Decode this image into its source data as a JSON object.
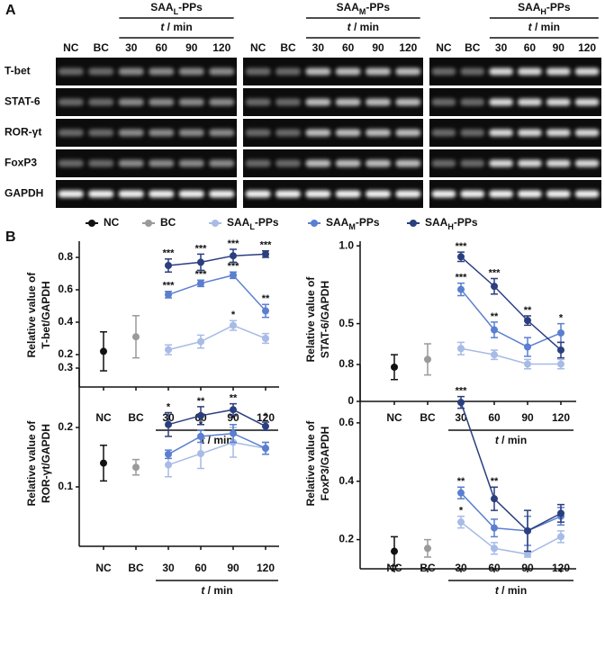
{
  "panel_a": {
    "label": "A",
    "rows": [
      "T-bet",
      "STAT-6",
      "ROR-γt",
      "FoxP3",
      "GAPDH"
    ],
    "groups": [
      {
        "title": [
          "SAA",
          "L",
          "-PPs"
        ],
        "time_label": [
          "t",
          " / min"
        ],
        "lanes": [
          "NC",
          "BC",
          "30",
          "60",
          "90",
          "120"
        ]
      },
      {
        "title": [
          "SAA",
          "M",
          "-PPs"
        ],
        "time_label": [
          "t",
          " / min"
        ],
        "lanes": [
          "NC",
          "BC",
          "30",
          "60",
          "90",
          "120"
        ]
      },
      {
        "title": [
          "SAA",
          "H",
          "-PPs"
        ],
        "time_label": [
          "t",
          " / min"
        ],
        "lanes": [
          "NC",
          "BC",
          "30",
          "60",
          "90",
          "120"
        ]
      }
    ]
  },
  "panel_b": {
    "label": "B"
  },
  "chart_data": [
    {
      "type": "line",
      "ylabel": [
        "Relative value of",
        "T-bet/GAPDH"
      ],
      "x_group_label": [
        "t",
        " / min"
      ],
      "categories": [
        "NC",
        "BC",
        "30",
        "60",
        "90",
        "120"
      ],
      "ylim": [
        0,
        0.9
      ],
      "yticks": [
        0.2,
        0.4,
        0.6,
        0.8
      ],
      "series": [
        {
          "name": "NC",
          "color": "#111111",
          "values": [
            0.22,
            null,
            null,
            null,
            null,
            null
          ],
          "errors": [
            0.12,
            null,
            null,
            null,
            null,
            null
          ]
        },
        {
          "name": "BC",
          "color": "#9a9a9a",
          "values": [
            null,
            0.31,
            null,
            null,
            null,
            null
          ],
          "errors": [
            null,
            0.13,
            null,
            null,
            null,
            null
          ]
        },
        {
          "name": [
            "SAA",
            "L",
            "-PPs"
          ],
          "color": "#a7bbe6",
          "values": [
            null,
            null,
            0.23,
            0.28,
            0.38,
            0.3
          ],
          "errors": [
            null,
            null,
            0.03,
            0.04,
            0.03,
            0.03
          ],
          "labels": [
            null,
            null,
            null,
            null,
            "*",
            null
          ]
        },
        {
          "name": [
            "SAA",
            "M",
            "-PPs"
          ],
          "color": "#5a7fd0",
          "values": [
            null,
            null,
            0.57,
            0.64,
            0.69,
            0.47
          ],
          "errors": [
            null,
            null,
            0.02,
            0.02,
            0.02,
            0.04
          ],
          "labels": [
            null,
            null,
            "***",
            "***",
            "***",
            "**"
          ]
        },
        {
          "name": [
            "SAA",
            "H",
            "-PPs"
          ],
          "color": "#2b3f7f",
          "values": [
            null,
            null,
            0.75,
            0.77,
            0.81,
            0.82
          ],
          "errors": [
            null,
            null,
            0.04,
            0.05,
            0.04,
            0.02
          ],
          "labels": [
            null,
            null,
            "***",
            "***",
            "***",
            "***"
          ]
        }
      ]
    },
    {
      "type": "line",
      "ylabel": [
        "Relative value of",
        "STAT-6/GAPDH"
      ],
      "x_group_label": [
        "t",
        " / min"
      ],
      "categories": [
        "NC",
        "BC",
        "30",
        "60",
        "90",
        "120"
      ],
      "ylim": [
        0,
        1.03
      ],
      "yticks": [
        0,
        0.5,
        {
          "value": 1,
          "label": "1.0"
        }
      ],
      "series": [
        {
          "color": "#111111",
          "values": [
            0.22,
            null,
            null,
            null,
            null,
            null
          ],
          "errors": [
            0.08,
            null,
            null,
            null,
            null,
            null
          ]
        },
        {
          "color": "#9a9a9a",
          "values": [
            null,
            0.27,
            null,
            null,
            null,
            null
          ],
          "errors": [
            null,
            0.1,
            null,
            null,
            null,
            null
          ]
        },
        {
          "color": "#a7bbe6",
          "values": [
            null,
            null,
            0.34,
            0.3,
            0.24,
            0.24
          ],
          "errors": [
            null,
            null,
            0.04,
            0.03,
            0.03,
            0.03
          ]
        },
        {
          "color": "#5a7fd0",
          "values": [
            null,
            null,
            0.72,
            0.46,
            0.35,
            0.44
          ],
          "errors": [
            null,
            null,
            0.04,
            0.05,
            0.06,
            0.06
          ],
          "labels": [
            null,
            null,
            "***",
            "**",
            null,
            "*"
          ]
        },
        {
          "color": "#2b3f7f",
          "values": [
            null,
            null,
            0.93,
            0.74,
            0.52,
            0.33
          ],
          "errors": [
            null,
            null,
            0.03,
            0.05,
            0.03,
            0.05
          ],
          "labels": [
            null,
            null,
            "***",
            "***",
            "**",
            null
          ]
        }
      ]
    },
    {
      "type": "line",
      "ylabel": [
        "Relative value of",
        "ROR-γt/GAPDH"
      ],
      "x_group_label": [
        "t",
        " / min"
      ],
      "categories": [
        "NC",
        "BC",
        "30",
        "60",
        "90",
        "120"
      ],
      "ylim": [
        0,
        0.3
      ],
      "yticks": [
        0.1,
        0.2,
        0.3
      ],
      "series": [
        {
          "color": "#111111",
          "values": [
            0.14,
            null,
            null,
            null,
            null,
            null
          ],
          "errors": [
            0.03,
            null,
            null,
            null,
            null,
            null
          ]
        },
        {
          "color": "#9a9a9a",
          "values": [
            null,
            0.133,
            null,
            null,
            null,
            null
          ],
          "errors": [
            null,
            0.013,
            null,
            null,
            null,
            null
          ]
        },
        {
          "color": "#a7bbe6",
          "values": [
            null,
            null,
            0.137,
            0.156,
            0.175,
            0.165
          ],
          "errors": [
            null,
            null,
            0.02,
            0.025,
            0.025,
            0.01
          ]
        },
        {
          "color": "#5a7fd0",
          "values": [
            null,
            null,
            0.155,
            0.185,
            0.19,
            0.165
          ],
          "errors": [
            null,
            null,
            0.007,
            0.01,
            0.015,
            0.01
          ],
          "labels": [
            null,
            null,
            null,
            "*",
            "*",
            null
          ]
        },
        {
          "color": "#2b3f7f",
          "values": [
            null,
            null,
            0.205,
            0.22,
            0.23,
            0.202
          ],
          "errors": [
            null,
            null,
            0.02,
            0.015,
            0.01,
            0.007
          ],
          "labels": [
            null,
            null,
            "*",
            "**",
            "**",
            "*"
          ]
        }
      ]
    },
    {
      "type": "line",
      "ylabel": [
        "Relative value of",
        "FoxP3/GAPDH"
      ],
      "x_group_label": [
        "t",
        " / min"
      ],
      "categories": [
        "NC",
        "BC",
        "30",
        "60",
        "90",
        "120"
      ],
      "ylim": [
        0.1,
        0.8
      ],
      "yticks": [
        0.2,
        0.4,
        0.6,
        0.8
      ],
      "series": [
        {
          "color": "#111111",
          "values": [
            0.16,
            null,
            null,
            null,
            null,
            null
          ],
          "errors": [
            0.05,
            null,
            null,
            null,
            null,
            null
          ]
        },
        {
          "color": "#9a9a9a",
          "values": [
            null,
            0.17,
            null,
            null,
            null,
            null
          ],
          "errors": [
            null,
            0.03,
            null,
            null,
            null,
            null
          ]
        },
        {
          "color": "#a7bbe6",
          "values": [
            null,
            null,
            0.26,
            0.17,
            0.15,
            0.21
          ],
          "errors": [
            null,
            null,
            0.02,
            0.02,
            0.01,
            0.02
          ],
          "labels": [
            null,
            null,
            "*",
            null,
            null,
            null
          ]
        },
        {
          "color": "#5a7fd0",
          "values": [
            null,
            null,
            0.36,
            0.24,
            0.23,
            0.28
          ],
          "errors": [
            null,
            null,
            0.02,
            0.03,
            0.05,
            0.03
          ],
          "labels": [
            null,
            null,
            "**",
            null,
            null,
            null
          ]
        },
        {
          "color": "#2b3f7f",
          "values": [
            null,
            null,
            0.67,
            0.34,
            0.23,
            0.29
          ],
          "errors": [
            null,
            null,
            0.02,
            0.04,
            0.07,
            0.03
          ],
          "labels": [
            null,
            null,
            "***",
            "**",
            null,
            null
          ]
        }
      ]
    }
  ]
}
